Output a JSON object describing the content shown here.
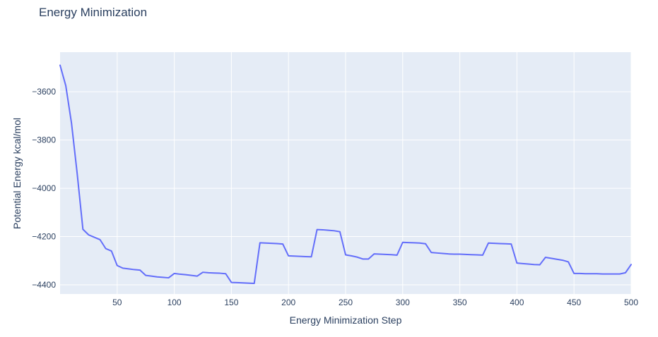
{
  "page": {
    "background": "#ffffff"
  },
  "chart_data": {
    "type": "line",
    "title": "Energy Minimization",
    "xlabel": "Energy Minimization Step",
    "ylabel": "Potential Energy kcal/mol",
    "legend": false,
    "grid": true,
    "plot_bgcolor": "#e5ecf6",
    "grid_color": "#ffffff",
    "text_color": "#2a3f5f",
    "line_color": "#636efa",
    "xlim": [
      0,
      500
    ],
    "ylim": [
      -4438,
      -3436
    ],
    "xticks": [
      50,
      100,
      150,
      200,
      250,
      300,
      350,
      400,
      450,
      500
    ],
    "yticks": [
      -4400,
      -4200,
      -4000,
      -3800,
      -3600
    ],
    "series": [
      {
        "name": "Potential Energy",
        "x": [
          0,
          5,
          10,
          15,
          20,
          25,
          30,
          35,
          40,
          45,
          50,
          55,
          60,
          65,
          70,
          75,
          80,
          85,
          90,
          95,
          100,
          105,
          110,
          115,
          120,
          125,
          130,
          135,
          140,
          145,
          150,
          155,
          160,
          165,
          170,
          175,
          180,
          185,
          190,
          195,
          200,
          205,
          210,
          215,
          220,
          225,
          230,
          235,
          240,
          245,
          250,
          255,
          260,
          265,
          270,
          275,
          280,
          285,
          290,
          295,
          300,
          305,
          310,
          315,
          320,
          325,
          330,
          335,
          340,
          345,
          350,
          355,
          360,
          365,
          370,
          375,
          380,
          385,
          390,
          395,
          400,
          405,
          410,
          415,
          420,
          425,
          430,
          435,
          440,
          445,
          450,
          455,
          460,
          465,
          470,
          475,
          480,
          485,
          490,
          495,
          500
        ],
        "y": [
          -3490,
          -3575,
          -3730,
          -3940,
          -4170,
          -4193,
          -4203,
          -4213,
          -4250,
          -4260,
          -4320,
          -4331,
          -4334,
          -4337,
          -4339,
          -4361,
          -4364,
          -4367,
          -4369,
          -4371,
          -4353,
          -4356,
          -4358,
          -4361,
          -4364,
          -4348,
          -4350,
          -4351,
          -4352,
          -4354,
          -4390,
          -4391,
          -4392,
          -4393,
          -4394,
          -4226,
          -4227,
          -4228,
          -4229,
          -4231,
          -4280,
          -4281,
          -4282,
          -4283,
          -4284,
          -4171,
          -4172,
          -4174,
          -4176,
          -4180,
          -4276,
          -4280,
          -4285,
          -4293,
          -4293,
          -4272,
          -4273,
          -4274,
          -4275,
          -4277,
          -4224,
          -4225,
          -4226,
          -4227,
          -4230,
          -4266,
          -4268,
          -4270,
          -4272,
          -4273,
          -4273,
          -4274,
          -4275,
          -4276,
          -4277,
          -4227,
          -4228,
          -4229,
          -4230,
          -4231,
          -4310,
          -4312,
          -4314,
          -4316,
          -4317,
          -4286,
          -4290,
          -4294,
          -4298,
          -4305,
          -4353,
          -4353,
          -4354,
          -4354,
          -4354,
          -4355,
          -4355,
          -4355,
          -4355,
          -4350,
          -4316
        ]
      }
    ]
  }
}
